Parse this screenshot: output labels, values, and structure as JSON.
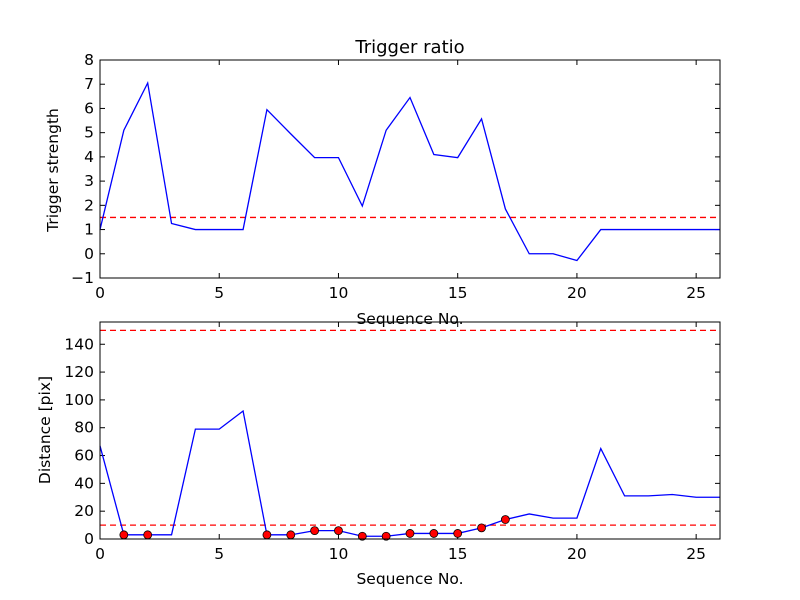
{
  "chart_data": [
    {
      "type": "line",
      "title": "Trigger ratio",
      "xlabel": "Sequence No.",
      "ylabel": "Trigger strength",
      "xlim": [
        0,
        26
      ],
      "ylim": [
        -1,
        8
      ],
      "xticks": [
        0,
        5,
        10,
        15,
        20,
        25
      ],
      "yticks": [
        -1,
        0,
        1,
        2,
        3,
        4,
        5,
        6,
        7,
        8
      ],
      "grid": false,
      "series": [
        {
          "color": "#0000ff",
          "style": "solid",
          "x": [
            0,
            1,
            2,
            3,
            4,
            5,
            6,
            7,
            8,
            9,
            10,
            11,
            12,
            13,
            14,
            15,
            16,
            17,
            18,
            19,
            20,
            21,
            22,
            23,
            24,
            25,
            26
          ],
          "y": [
            1.0,
            5.1,
            7.05,
            1.25,
            1.0,
            1.0,
            1.0,
            5.95,
            4.95,
            3.97,
            3.97,
            1.97,
            5.1,
            6.45,
            4.1,
            3.97,
            5.57,
            1.85,
            0.0,
            0.0,
            -0.28,
            1.0,
            1.0,
            1.0,
            1.0,
            1.0,
            1.0
          ]
        }
      ],
      "reference_lines": [
        {
          "y": 1.5,
          "color": "#ff0000",
          "style": "dashed"
        }
      ]
    },
    {
      "type": "line",
      "title": "",
      "xlabel": "Sequence No.",
      "ylabel": "Distance [pix]",
      "xlim": [
        0,
        26
      ],
      "ylim": [
        0,
        156
      ],
      "xticks": [
        0,
        5,
        10,
        15,
        20,
        25
      ],
      "yticks": [
        0,
        20,
        40,
        60,
        80,
        100,
        120,
        140
      ],
      "grid": false,
      "series": [
        {
          "color": "#0000ff",
          "style": "solid",
          "x": [
            0,
            1,
            2,
            3,
            4,
            5,
            6,
            7,
            8,
            9,
            10,
            11,
            12,
            13,
            14,
            15,
            16,
            17,
            18,
            19,
            20,
            21,
            22,
            23,
            24,
            25,
            26
          ],
          "y": [
            67,
            3,
            3,
            3,
            79,
            79,
            92,
            3,
            3,
            6,
            6,
            2,
            2,
            4,
            4,
            4,
            8,
            14,
            18,
            15,
            15,
            65,
            31,
            31,
            32,
            30,
            30
          ]
        }
      ],
      "markers": {
        "color": "#ff0000",
        "x": [
          1,
          2,
          7,
          8,
          9,
          10,
          11,
          12,
          13,
          14,
          15,
          16,
          17
        ],
        "y": [
          3,
          3,
          3,
          3,
          6,
          6,
          2,
          2,
          4,
          4,
          4,
          8,
          14
        ]
      },
      "reference_lines": [
        {
          "y": 150,
          "color": "#ff0000",
          "style": "dashed"
        },
        {
          "y": 10,
          "color": "#ff0000",
          "style": "dashed"
        }
      ]
    }
  ]
}
